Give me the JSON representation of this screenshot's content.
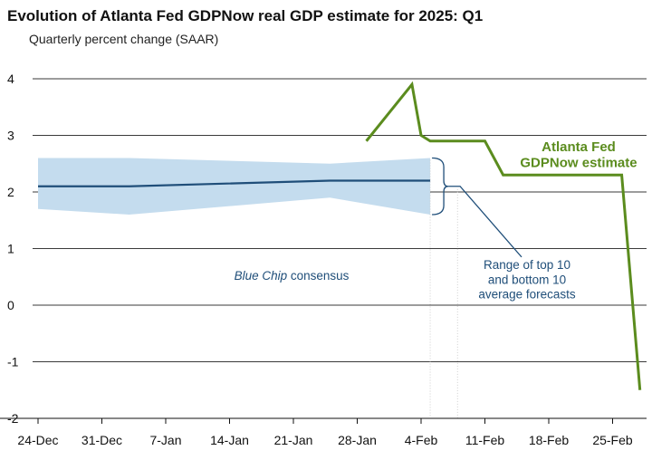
{
  "chart_data": {
    "type": "line",
    "title": "Evolution of Atlanta Fed GDPNow real GDP estimate for 2025: Q1",
    "subtitle": "Quarterly percent change (SAAR)",
    "xlabel": "",
    "ylabel": "",
    "x_ticks": [
      "24-Dec",
      "31-Dec",
      "7-Jan",
      "14-Jan",
      "21-Jan",
      "28-Jan",
      "4-Feb",
      "11-Feb",
      "18-Feb",
      "25-Feb"
    ],
    "ylim": [
      -2,
      4
    ],
    "y_ticks": [
      "-2",
      "-1",
      "0",
      "1",
      "2",
      "3",
      "4"
    ],
    "grid": "horizontal",
    "series": [
      {
        "name": "Atlanta Fed GDPNow estimate",
        "color": "#5b8c1e",
        "points": [
          {
            "x": "2025-01-29",
            "y": 2.9
          },
          {
            "x": "2025-02-03",
            "y": 3.9
          },
          {
            "x": "2025-02-04",
            "y": 3.0
          },
          {
            "x": "2025-02-05",
            "y": 2.9
          },
          {
            "x": "2025-02-11",
            "y": 2.9
          },
          {
            "x": "2025-02-13",
            "y": 2.3
          },
          {
            "x": "2025-02-26",
            "y": 2.3
          },
          {
            "x": "2025-02-28",
            "y": -1.5
          }
        ]
      },
      {
        "name": "Blue Chip consensus",
        "color": "#1f4e79",
        "points": [
          {
            "x": "2024-12-24",
            "y": 2.1
          },
          {
            "x": "2025-01-03",
            "y": 2.1
          },
          {
            "x": "2025-01-25",
            "y": 2.2
          },
          {
            "x": "2025-02-05",
            "y": 2.2
          }
        ]
      }
    ],
    "range_band": {
      "color": "#c4dcee",
      "upper": [
        {
          "x": "2024-12-24",
          "y": 2.6
        },
        {
          "x": "2025-01-03",
          "y": 2.6
        },
        {
          "x": "2025-01-25",
          "y": 2.5
        },
        {
          "x": "2025-02-05",
          "y": 2.6
        }
      ],
      "lower": [
        {
          "x": "2024-12-24",
          "y": 1.7
        },
        {
          "x": "2025-01-03",
          "y": 1.6
        },
        {
          "x": "2025-01-25",
          "y": 1.9
        },
        {
          "x": "2025-02-05",
          "y": 1.6
        }
      ]
    },
    "annotations": {
      "gdpnow_label": [
        "Atlanta Fed",
        "GDPNow estimate"
      ],
      "bluechip_label_italic": "Blue Chip",
      "bluechip_label_rest": " consensus",
      "range_label": [
        "Range of top 10",
        "and bottom 10",
        "average forecasts"
      ]
    }
  }
}
